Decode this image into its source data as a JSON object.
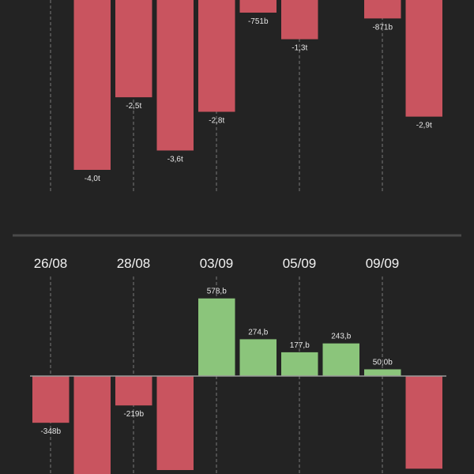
{
  "colors": {
    "background": "#232323",
    "negative": "#c9545f",
    "positive": "#8bc57b",
    "gridline": "#7a7a7a",
    "separator": "#4a4a4a",
    "baseline": "#9a9a9a",
    "text": "#e6e6e6"
  },
  "chart_data": [
    {
      "type": "bar",
      "note_visible": "top chart partially cropped; bars extend above the visible area",
      "values": [
        null,
        -4.0,
        -2.5,
        -3.6,
        -2.8,
        -0.751,
        -1.3,
        null,
        -0.871,
        -2.9
      ],
      "value_unit": "t",
      "labels": [
        "",
        "-4,0t",
        "-2,5t",
        "-3,6t",
        "-2,8t",
        "-751b",
        "-1,3t",
        "",
        "-871b",
        "-2,9t"
      ],
      "grid": true
    },
    {
      "type": "bar",
      "categories": [
        "26/08",
        "28/08",
        "03/09",
        "05/09",
        "09/09"
      ],
      "tick_labels": [
        "26/08",
        "28/08",
        "03/09",
        "05/09",
        "09/09"
      ],
      "values": [
        -348,
        null,
        -219,
        null,
        578,
        274,
        177,
        243,
        50.0,
        null
      ],
      "value_unit": "b",
      "labels": [
        "-348b",
        "",
        "-219b",
        "",
        "578,b",
        "274,b",
        "177,b",
        "243,b",
        "50,0b",
        ""
      ],
      "grid": true
    }
  ]
}
